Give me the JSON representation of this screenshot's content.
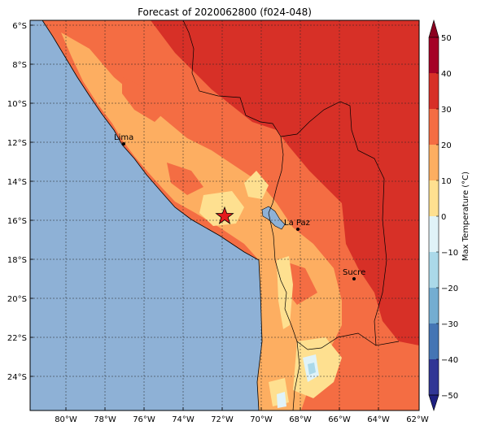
{
  "title": "Forecast of 2020062800 (f024-048)",
  "colorbar": {
    "label": "Max Temperature (°C)",
    "ticks": [
      "50",
      "40",
      "30",
      "20",
      "10",
      "0",
      "−10",
      "−20",
      "−30",
      "−40",
      "−50"
    ],
    "levels": [
      {
        "value": 45,
        "color": "#a50026"
      },
      {
        "value": 35,
        "color": "#d73027"
      },
      {
        "value": 25,
        "color": "#f46d43"
      },
      {
        "value": 15,
        "color": "#fdae61"
      },
      {
        "value": 5,
        "color": "#fee090"
      },
      {
        "value": -5,
        "color": "#e0f3f8"
      },
      {
        "value": -15,
        "color": "#abd9e9"
      },
      {
        "value": -25,
        "color": "#74add1"
      },
      {
        "value": -35,
        "color": "#4575b4"
      },
      {
        "value": -45,
        "color": "#313695"
      }
    ],
    "extend_max_color": "#8b0020",
    "extend_min_color": "#1e2080"
  },
  "map": {
    "ocean_color": "#8eb1d6",
    "lon_labels": [
      "80°W",
      "78°W",
      "76°W",
      "74°W",
      "72°W",
      "70°W",
      "68°W",
      "66°W",
      "64°W",
      "62°W"
    ],
    "lat_labels": [
      "6°S",
      "8°S",
      "10°S",
      "12°S",
      "14°S",
      "16°S",
      "18°S",
      "20°S",
      "22°S",
      "24°S"
    ]
  },
  "cities": [
    {
      "name": "Lima"
    },
    {
      "name": "La Paz"
    },
    {
      "name": "Sucre"
    }
  ],
  "marker": {
    "type": "star",
    "color": "#e41a1c"
  }
}
